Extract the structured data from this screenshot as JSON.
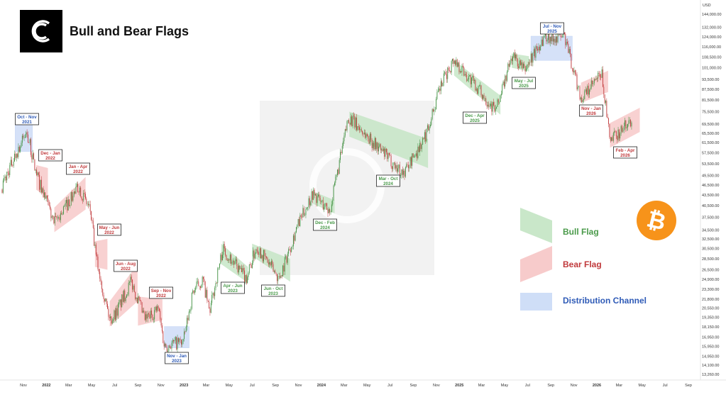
{
  "header": {
    "title": "Bull and Bear Flags"
  },
  "colors": {
    "bull": "#4a9a4a",
    "bear": "#c0393b",
    "dist": "#2f5bb7",
    "bull_fill": "#bfe3bf",
    "bear_fill": "#f6c2c2",
    "dist_fill": "#c7d8f6",
    "candle_up": "#3f8f3f",
    "candle_down": "#c0393b",
    "btc": "#f7931a"
  },
  "icons": [
    "brand-logo-icon",
    "bitcoin-icon"
  ],
  "chart_data": {
    "type": "candlestick",
    "title": "Bull and Bear Flags",
    "y_scale": "log",
    "y_unit_label": "USD",
    "y_ticks": [
      13260,
      14100,
      14950,
      15950,
      16950,
      18150,
      19350,
      20550,
      21800,
      23300,
      24900,
      26500,
      28500,
      30500,
      32500,
      34500,
      37500,
      40500,
      43500,
      46500,
      49500,
      53500,
      57500,
      61500,
      65500,
      69500,
      75500,
      81500,
      87500,
      93500,
      101000,
      108500,
      116000,
      124000,
      132000,
      144000
    ],
    "y_tick_labels": [
      "13,260.00",
      "14,100.00",
      "14,950.00",
      "15,950.00",
      "16,950.00",
      "18,150.00",
      "19,350.00",
      "20,550.00",
      "21,800.00",
      "23,300.00",
      "24,900.00",
      "26,500.00",
      "28,500.00",
      "30,500.00",
      "32,500.00",
      "34,500.00",
      "37,500.00",
      "40,500.00",
      "43,500.00",
      "46,500.00",
      "49,500.00",
      "53,500.00",
      "57,500.00",
      "61,500.00",
      "65,500.00",
      "69,500.00",
      "75,500.00",
      "81,500.00",
      "87,500.00",
      "93,500.00",
      "101,000.00",
      "108,500.00",
      "116,000.00",
      "124,000.00",
      "132,000.00",
      "144,000.00"
    ],
    "x_start": "2021-10",
    "x_end": "2026-09",
    "x_ticks": [
      "Nov",
      "2022",
      "Mar",
      "May",
      "Jul",
      "Sep",
      "Nov",
      "2023",
      "Mar",
      "May",
      "Jul",
      "Sep",
      "Nov",
      "2024",
      "Mar",
      "May",
      "Jul",
      "Sep",
      "Nov",
      "2025",
      "Mar",
      "May",
      "Jul",
      "Sep",
      "Nov",
      "2026",
      "Mar",
      "May",
      "Jul",
      "Sep"
    ],
    "price_path": [
      [
        "2021-09-01",
        45000
      ],
      [
        "2021-10-05",
        55000
      ],
      [
        "2021-11-10",
        66000
      ],
      [
        "2021-12-05",
        50000
      ],
      [
        "2022-01-22",
        36000
      ],
      [
        "2022-03-28",
        46000
      ],
      [
        "2022-04-28",
        39000
      ],
      [
        "2022-05-12",
        29000
      ],
      [
        "2022-06-18",
        19000
      ],
      [
        "2022-07-05",
        20000
      ],
      [
        "2022-08-14",
        24500
      ],
      [
        "2022-09-20",
        19000
      ],
      [
        "2022-10-25",
        20500
      ],
      [
        "2022-11-10",
        16000
      ],
      [
        "2022-12-31",
        16500
      ],
      [
        "2023-01-25",
        23000
      ],
      [
        "2023-02-20",
        24800
      ],
      [
        "2023-03-10",
        20000
      ],
      [
        "2023-04-14",
        30500
      ],
      [
        "2023-06-15",
        25000
      ],
      [
        "2023-07-13",
        31000
      ],
      [
        "2023-09-11",
        25000
      ],
      [
        "2023-10-25",
        34500
      ],
      [
        "2023-12-08",
        44000
      ],
      [
        "2024-01-23",
        39000
      ],
      [
        "2024-03-13",
        73000
      ],
      [
        "2024-08-05",
        50000
      ],
      [
        "2024-09-30",
        63000
      ],
      [
        "2024-11-12",
        89000
      ],
      [
        "2024-12-17",
        107000
      ],
      [
        "2025-04-08",
        76000
      ],
      [
        "2025-05-22",
        110000
      ],
      [
        "2025-06-22",
        99000
      ],
      [
        "2025-08-14",
        124000
      ],
      [
        "2025-10-06",
        125000
      ],
      [
        "2025-11-21",
        82000
      ],
      [
        "2026-01-14",
        97000
      ],
      [
        "2026-02-05",
        62000
      ],
      [
        "2026-04-05",
        72000
      ]
    ],
    "patterns": [
      {
        "label": "Oct - Nov\n2021",
        "type": "distribution",
        "start": "2021-10-10",
        "end": "2021-11-25",
        "top": 69500,
        "bottom": 58000
      },
      {
        "label": "Dec - Jan\n2022",
        "type": "bear",
        "start": "2021-12-05",
        "end": "2022-01-05",
        "top_start": 53000,
        "top_end": 52000,
        "bottom_start": 45000,
        "bottom_end": 43000
      },
      {
        "label": "Jan - Apr\n2022",
        "type": "bear",
        "start": "2022-01-22",
        "end": "2022-04-15",
        "top_start": 40000,
        "top_end": 49000,
        "bottom_start": 34000,
        "bottom_end": 39500
      },
      {
        "label": "May - Jun\n2022",
        "type": "bear",
        "start": "2022-05-10",
        "end": "2022-06-12",
        "top_start": 32000,
        "top_end": 32500,
        "bottom_start": 27000,
        "bottom_end": 26500
      },
      {
        "label": "Jun - Aug\n2022",
        "type": "bear",
        "start": "2022-06-18",
        "end": "2022-08-31",
        "top_start": 21500,
        "top_end": 27500,
        "bottom_start": 18200,
        "bottom_end": 21500
      },
      {
        "label": "Sep - Nov\n2022",
        "type": "bear",
        "start": "2022-09-01",
        "end": "2022-11-05",
        "top_start": 22200,
        "top_end": 21800,
        "bottom_start": 18300,
        "bottom_end": 19000
      },
      {
        "label": "Nov - Jan\n2023",
        "type": "distribution",
        "start": "2022-11-10",
        "end": "2023-01-15",
        "top": 18200,
        "bottom": 15800
      },
      {
        "label": "Apr - Jun\n2023",
        "type": "bull",
        "start": "2023-04-10",
        "end": "2023-06-20",
        "top_start": 31500,
        "top_end": 27000,
        "bottom_start": 27500,
        "bottom_end": 24300
      },
      {
        "label": "Jun - Oct\n2023",
        "type": "bull",
        "start": "2023-07-01",
        "end": "2023-10-10",
        "top_start": 31500,
        "top_end": 28500,
        "bottom_start": 29000,
        "bottom_end": 24500
      },
      {
        "label": "Dec - Feb\n2024",
        "type": "bull",
        "start": "2023-12-10",
        "end": "2024-02-05",
        "top_start": 44500,
        "top_end": 42000,
        "bottom_start": 41000,
        "bottom_end": 38500
      },
      {
        "label": "Mar - Oct\n2024",
        "type": "bull",
        "start": "2024-03-15",
        "end": "2024-10-10",
        "top_start": 75500,
        "top_end": 63000,
        "bottom_start": 64000,
        "bottom_end": 52000
      },
      {
        "label": "Dec - Apr\n2025",
        "type": "bull",
        "start": "2024-12-18",
        "end": "2025-04-20",
        "top_start": 106000,
        "top_end": 84000,
        "bottom_start": 96000,
        "bottom_end": 74000
      },
      {
        "label": "May - Jul\n2025",
        "type": "bull",
        "start": "2025-05-20",
        "end": "2025-07-05",
        "top_start": 111000,
        "top_end": 109000,
        "bottom_start": 101000,
        "bottom_end": 98500
      },
      {
        "label": "Jul - Nov\n2025",
        "type": "distribution",
        "start": "2025-07-10",
        "end": "2025-10-28",
        "top": 124500,
        "bottom": 106000
      },
      {
        "label": "Nov - Jan\n2026",
        "type": "bear",
        "start": "2025-11-20",
        "end": "2026-01-31",
        "top_start": 91500,
        "top_end": 99000,
        "bottom_start": 80000,
        "bottom_end": 86000
      },
      {
        "label": "Feb - Apr\n2026",
        "type": "bear",
        "start": "2026-02-05",
        "end": "2026-04-25",
        "top_start": 70000,
        "top_end": 77500,
        "bottom_start": 59500,
        "bottom_end": 66000
      }
    ],
    "legend": [
      {
        "label": "Bull Flag",
        "type": "bull"
      },
      {
        "label": "Bear Flag",
        "type": "bear"
      },
      {
        "label": "Distribution Channel",
        "type": "distribution"
      }
    ],
    "grid": false,
    "legend_placement": "right"
  }
}
